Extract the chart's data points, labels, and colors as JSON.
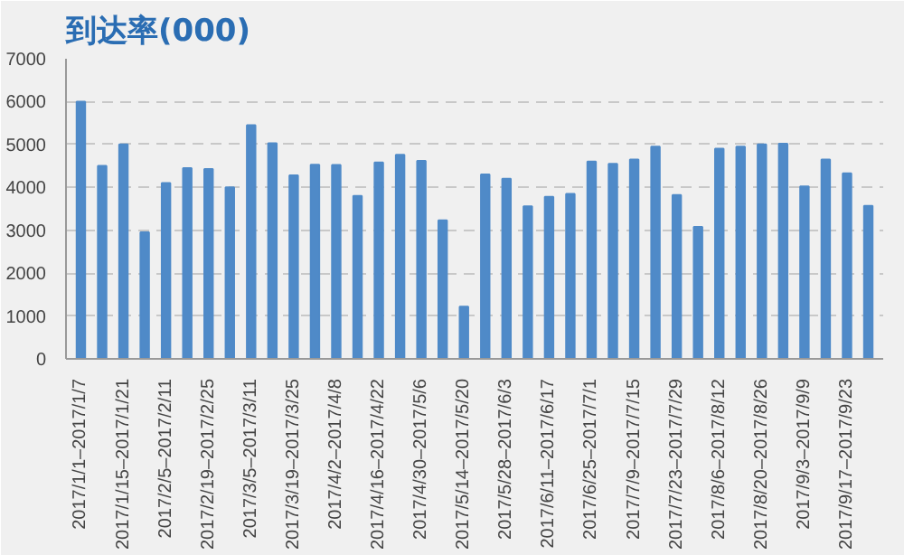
{
  "chart_data": {
    "type": "bar",
    "title": "到达率(000)",
    "categories": [
      "2017/1/1–2017/1/7",
      null,
      "2017/1/15–2017/1/21",
      null,
      "2017/2/5–2017/2/11",
      null,
      "2017/2/19–2017/2/25",
      null,
      "2017/3/5–2017/3/11",
      null,
      "2017/3/19–2017/3/25",
      null,
      "2017/4/2–2017/4/8",
      null,
      "2017/4/16–2017/4/22",
      null,
      "2017/4/30–2017/5/6",
      null,
      "2017/5/14–2017/5/20",
      null,
      "2017/5/28–2017/6/3",
      null,
      "2017/6/11–2017/6/17",
      null,
      "2017/6/25–2017/7/1",
      null,
      "2017/7/9–2017/7/15",
      null,
      "2017/7/23–2017/7/29",
      null,
      "2017/8/6–2017/8/12",
      null,
      "2017/8/20–2017/8/26",
      null,
      "2017/9/3–2017/9/9",
      null,
      "2017/9/17–2017/9/23",
      null
    ],
    "values": [
      6000,
      4500,
      5000,
      2950,
      4100,
      4450,
      4430,
      4000,
      5450,
      5030,
      4280,
      4530,
      4520,
      3800,
      4580,
      4760,
      4620,
      3230,
      1220,
      4300,
      4200,
      3560,
      3780,
      3850,
      4600,
      4550,
      4650,
      4950,
      3820,
      3080,
      4900,
      4950,
      5000,
      5020,
      4020,
      4650,
      4330,
      3570
    ],
    "color": "#4f8ac8",
    "ylim": [
      0,
      7000
    ],
    "yticks": [
      0,
      1000,
      2000,
      3000,
      4000,
      5000,
      6000,
      7000
    ],
    "grid": "y"
  }
}
